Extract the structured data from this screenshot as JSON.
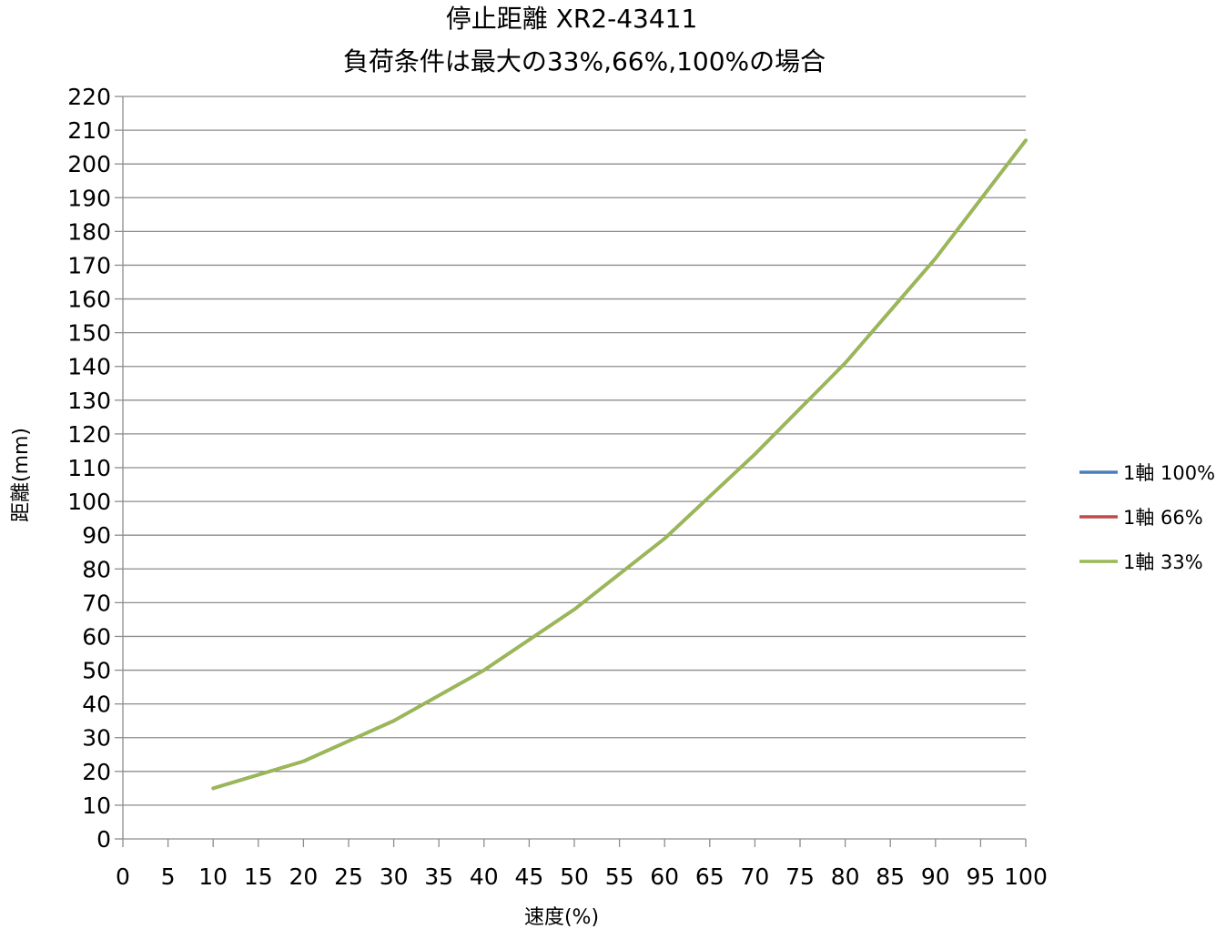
{
  "chart_data": {
    "type": "line",
    "title_lines": [
      "停止距離 XR2-43411",
      "負荷条件は最大の33%,66%,100%の場合"
    ],
    "xlabel": "速度(%)",
    "ylabel": "距離(mm)",
    "xlim": [
      0,
      100
    ],
    "ylim": [
      0,
      220
    ],
    "xticks": [
      0,
      5,
      10,
      15,
      20,
      25,
      30,
      35,
      40,
      45,
      50,
      55,
      60,
      65,
      70,
      75,
      80,
      85,
      90,
      95,
      100
    ],
    "yticks": [
      0,
      10,
      20,
      30,
      40,
      50,
      60,
      70,
      80,
      90,
      100,
      110,
      120,
      130,
      140,
      150,
      160,
      170,
      180,
      190,
      200,
      210,
      220
    ],
    "grid": true,
    "legend_position": "right",
    "x": [
      10,
      20,
      30,
      40,
      50,
      60,
      70,
      80,
      90,
      100
    ],
    "series": [
      {
        "name": "1軸 100%",
        "color": "#4A7EBB",
        "values": [
          15,
          23,
          35,
          50,
          68,
          89,
          114,
          141,
          172,
          207
        ]
      },
      {
        "name": "1軸 66%",
        "color": "#BE4B48",
        "values": [
          15,
          23,
          35,
          50,
          68,
          89,
          114,
          141,
          172,
          207
        ]
      },
      {
        "name": "1軸 33%",
        "color": "#98B954",
        "values": [
          15,
          23,
          35,
          50,
          68,
          89,
          114,
          141,
          172,
          207
        ]
      }
    ]
  }
}
